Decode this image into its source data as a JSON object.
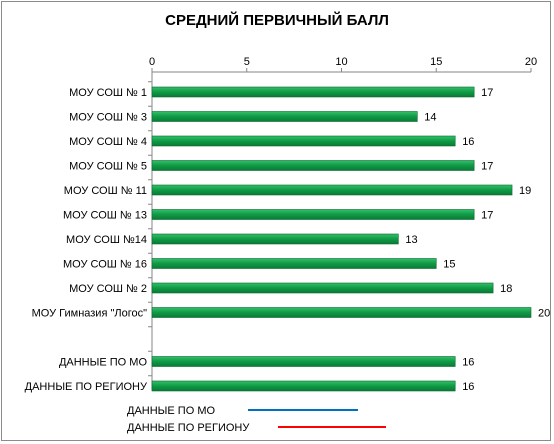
{
  "chart_data": {
    "type": "bar",
    "orientation": "horizontal",
    "title": "СРЕДНИЙ ПЕРВИЧНЫЙ БАЛЛ",
    "categories": [
      "МОУ СОШ № 1",
      "МОУ СОШ № 3",
      "МОУ СОШ № 4",
      "МОУ СОШ № 5",
      "МОУ СОШ № 11",
      "МОУ СОШ № 13",
      "МОУ СОШ №14",
      "МОУ СОШ № 16",
      "МОУ СОШ № 2",
      "МОУ Гимназия \"Логос\"",
      "",
      "ДАННЫЕ ПО МО",
      "ДАННЫЕ ПО РЕГИОНУ"
    ],
    "values": [
      17,
      14,
      16,
      17,
      19,
      17,
      13,
      15,
      18,
      20,
      null,
      16,
      16
    ],
    "xlim": [
      0,
      20
    ],
    "xticks": [
      0,
      5,
      10,
      15,
      20
    ],
    "x_axis_position": "top",
    "grid": false,
    "bar_color": "#0f9a45",
    "legend": {
      "position": "bottom-left",
      "items": [
        {
          "label": "ДАННЫЕ ПО МО",
          "color": "#0070c0"
        },
        {
          "label": "ДАННЫЕ ПО РЕГИОНУ",
          "color": "#ff0000"
        }
      ]
    }
  }
}
